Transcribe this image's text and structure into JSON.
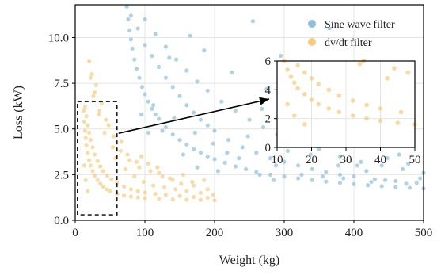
{
  "chart_data": {
    "type": "scatter",
    "xlabel": "Weight (kg)",
    "ylabel": "Loss (kW)",
    "xlim": [
      0,
      500
    ],
    "ylim": [
      0,
      11.8
    ],
    "xticks": [
      "0",
      "100",
      "200",
      "300",
      "400",
      "500"
    ],
    "yticks": [
      "0.0",
      "2.5",
      "5.0",
      "7.5",
      "10.0"
    ],
    "grid": true,
    "legend_position": "top-right",
    "series": [
      {
        "name": "Sine wave filter",
        "color": "#8fbfd9",
        "points": [
          [
            74,
            11.7
          ],
          [
            76,
            11.0
          ],
          [
            78,
            10.4
          ],
          [
            80,
            9.9
          ],
          [
            82,
            9.4
          ],
          [
            85,
            8.8
          ],
          [
            88,
            8.3
          ],
          [
            92,
            7.8
          ],
          [
            96,
            7.3
          ],
          [
            100,
            6.9
          ],
          [
            105,
            6.5
          ],
          [
            110,
            6.1
          ],
          [
            115,
            5.8
          ],
          [
            120,
            5.55
          ],
          [
            130,
            5.1
          ],
          [
            140,
            4.7
          ],
          [
            150,
            4.4
          ],
          [
            160,
            4.15
          ],
          [
            170,
            3.9
          ],
          [
            180,
            3.7
          ],
          [
            190,
            3.5
          ],
          [
            200,
            3.35
          ],
          [
            215,
            3.15
          ],
          [
            230,
            2.95
          ],
          [
            245,
            2.8
          ],
          [
            260,
            2.65
          ],
          [
            280,
            2.5
          ],
          [
            300,
            2.4
          ],
          [
            320,
            2.3
          ],
          [
            340,
            2.2
          ],
          [
            360,
            2.12
          ],
          [
            380,
            2.05
          ],
          [
            400,
            1.98
          ],
          [
            420,
            1.92
          ],
          [
            440,
            1.87
          ],
          [
            460,
            1.82
          ],
          [
            480,
            1.78
          ],
          [
            500,
            1.74
          ],
          [
            80,
            11.2
          ],
          [
            90,
            10.5
          ],
          [
            100,
            9.6
          ],
          [
            110,
            9.0
          ],
          [
            120,
            8.4
          ],
          [
            130,
            7.8
          ],
          [
            140,
            7.3
          ],
          [
            150,
            6.8
          ],
          [
            160,
            6.3
          ],
          [
            170,
            5.9
          ],
          [
            180,
            5.5
          ],
          [
            190,
            5.2
          ],
          [
            200,
            4.9
          ],
          [
            220,
            4.4
          ],
          [
            240,
            4.0
          ],
          [
            260,
            3.7
          ],
          [
            280,
            3.4
          ],
          [
            300,
            3.2
          ],
          [
            320,
            3.0
          ],
          [
            340,
            2.8
          ],
          [
            360,
            2.65
          ],
          [
            380,
            2.5
          ],
          [
            400,
            2.4
          ],
          [
            430,
            2.25
          ],
          [
            460,
            2.15
          ],
          [
            490,
            2.05
          ],
          [
            100,
            11.0
          ],
          [
            115,
            10.2
          ],
          [
            130,
            9.5
          ],
          [
            145,
            8.8
          ],
          [
            160,
            8.2
          ],
          [
            175,
            7.6
          ],
          [
            190,
            7.1
          ],
          [
            210,
            6.5
          ],
          [
            230,
            6.0
          ],
          [
            250,
            5.5
          ],
          [
            270,
            5.1
          ],
          [
            290,
            4.7
          ],
          [
            310,
            4.4
          ],
          [
            330,
            4.1
          ],
          [
            350,
            3.9
          ],
          [
            380,
            3.5
          ],
          [
            410,
            3.2
          ],
          [
            440,
            3.0
          ],
          [
            470,
            2.8
          ],
          [
            500,
            2.6
          ],
          [
            95,
            5.8
          ],
          [
            105,
            4.8
          ],
          [
            125,
            4.9
          ],
          [
            135,
            8.9
          ],
          [
            155,
            3.6
          ],
          [
            165,
            10.1
          ],
          [
            175,
            2.9
          ],
          [
            185,
            9.3
          ],
          [
            205,
            2.7
          ],
          [
            225,
            8.1
          ],
          [
            235,
            3.4
          ],
          [
            255,
            10.9
          ],
          [
            265,
            2.5
          ],
          [
            275,
            7.2
          ],
          [
            285,
            2.2
          ],
          [
            295,
            9.0
          ],
          [
            305,
            3.8
          ],
          [
            315,
            6.6
          ],
          [
            325,
            2.5
          ],
          [
            335,
            8.4
          ],
          [
            345,
            5.2
          ],
          [
            355,
            2.4
          ],
          [
            365,
            10.5
          ],
          [
            375,
            4.5
          ],
          [
            385,
            2.3
          ],
          [
            395,
            6.3
          ],
          [
            405,
            3.0
          ],
          [
            415,
            8.7
          ],
          [
            425,
            2.1
          ],
          [
            435,
            5.0
          ],
          [
            445,
            2.2
          ],
          [
            455,
            7.4
          ],
          [
            465,
            3.6
          ],
          [
            475,
            2.0
          ],
          [
            485,
            4.2
          ],
          [
            495,
            2.3
          ],
          [
            112,
            6.3
          ],
          [
            142,
            5.6
          ],
          [
            172,
            4.8
          ],
          [
            198,
            4.2
          ],
          [
            218,
            3.7
          ],
          [
            248,
            4.6
          ],
          [
            268,
            6.1
          ],
          [
            288,
            3.0
          ],
          [
            308,
            5.4
          ],
          [
            338,
            3.6
          ],
          [
            358,
            4.8
          ],
          [
            378,
            3.0
          ],
          [
            398,
            4.1
          ],
          [
            418,
            2.7
          ],
          [
            448,
            3.4
          ],
          [
            478,
            3.1
          ]
        ]
      },
      {
        "name": "dv/dt filter",
        "color": "#f5cd82",
        "points": [
          [
            12,
            6.0
          ],
          [
            13,
            5.4
          ],
          [
            14,
            4.9
          ],
          [
            15,
            4.5
          ],
          [
            16,
            4.1
          ],
          [
            18,
            3.7
          ],
          [
            20,
            3.3
          ],
          [
            22,
            3.0
          ],
          [
            25,
            2.7
          ],
          [
            28,
            2.45
          ],
          [
            32,
            2.2
          ],
          [
            36,
            2.0
          ],
          [
            40,
            1.85
          ],
          [
            45,
            1.7
          ],
          [
            50,
            1.6
          ],
          [
            60,
            1.45
          ],
          [
            70,
            1.35
          ],
          [
            80,
            1.3
          ],
          [
            90,
            1.25
          ],
          [
            100,
            1.22
          ],
          [
            120,
            1.18
          ],
          [
            140,
            1.15
          ],
          [
            160,
            1.13
          ],
          [
            180,
            1.12
          ],
          [
            200,
            1.1
          ],
          [
            14,
            6.2
          ],
          [
            16,
            5.7
          ],
          [
            18,
            5.2
          ],
          [
            20,
            4.8
          ],
          [
            22,
            4.4
          ],
          [
            25,
            4.0
          ],
          [
            28,
            3.6
          ],
          [
            32,
            3.25
          ],
          [
            36,
            2.95
          ],
          [
            40,
            2.7
          ],
          [
            46,
            2.45
          ],
          [
            52,
            2.25
          ],
          [
            60,
            2.05
          ],
          [
            70,
            1.85
          ],
          [
            80,
            1.7
          ],
          [
            90,
            1.6
          ],
          [
            100,
            1.52
          ],
          [
            115,
            1.45
          ],
          [
            130,
            1.4
          ],
          [
            150,
            1.33
          ],
          [
            170,
            1.28
          ],
          [
            190,
            1.24
          ],
          [
            13,
            3.0
          ],
          [
            15,
            2.2
          ],
          [
            18,
            1.6
          ],
          [
            20,
            8.7
          ],
          [
            24,
            8.0
          ],
          [
            26,
            6.8
          ],
          [
            30,
            7.4
          ],
          [
            34,
            5.8
          ],
          [
            38,
            6.4
          ],
          [
            42,
            4.8
          ],
          [
            48,
            5.2
          ],
          [
            54,
            4.0
          ],
          [
            58,
            3.4
          ],
          [
            65,
            3.8
          ],
          [
            72,
            2.8
          ],
          [
            78,
            3.3
          ],
          [
            85,
            2.4
          ],
          [
            92,
            2.9
          ],
          [
            98,
            2.1
          ],
          [
            105,
            3.1
          ],
          [
            112,
            1.9
          ],
          [
            120,
            2.6
          ],
          [
            128,
            1.8
          ],
          [
            136,
            2.3
          ],
          [
            144,
            1.7
          ],
          [
            152,
            2.0
          ],
          [
            160,
            1.6
          ],
          [
            170,
            1.9
          ],
          [
            180,
            1.5
          ],
          [
            190,
            1.7
          ],
          [
            198,
            1.4
          ],
          [
            22,
            7.8
          ],
          [
            28,
            7.0
          ],
          [
            35,
            6.0
          ],
          [
            44,
            5.5
          ],
          [
            55,
            4.6
          ],
          [
            66,
            4.3
          ],
          [
            75,
            3.6
          ],
          [
            88,
            3.2
          ],
          [
            95,
            3.5
          ],
          [
            108,
            2.7
          ],
          [
            118,
            2.9
          ],
          [
            125,
            2.4
          ],
          [
            140,
            2.2
          ],
          [
            155,
            2.5
          ],
          [
            168,
            2.1
          ],
          [
            185,
            2.2
          ]
        ]
      }
    ],
    "inset": {
      "xlim": [
        10,
        50
      ],
      "ylim": [
        0,
        6
      ],
      "xticks": [
        "10",
        "20",
        "30",
        "40",
        "50"
      ],
      "yticks": [
        "0",
        "2",
        "4",
        "6"
      ],
      "source_region": {
        "x": [
          10,
          60
        ],
        "y": [
          0.3,
          6.5
        ]
      }
    }
  }
}
